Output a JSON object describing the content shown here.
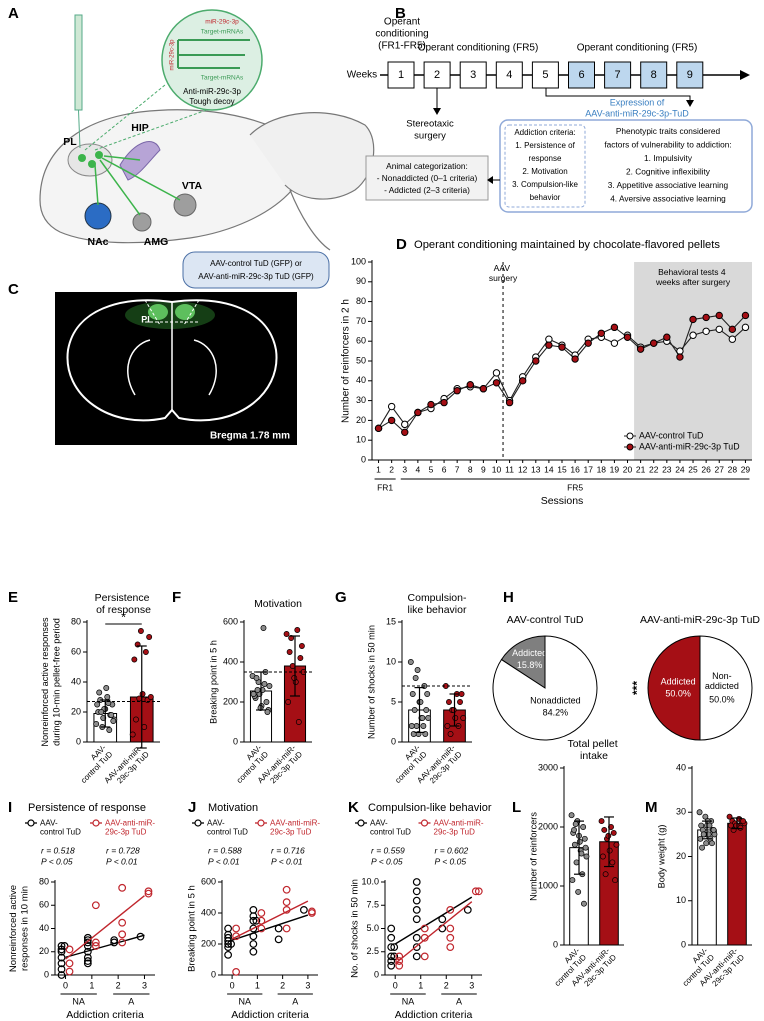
{
  "diagrams": {
    "panel_a": {
      "panel": "A",
      "inset_labels": [
        "miR-29c-3p",
        "Target-mRNAs",
        "miR-29c-3p",
        "Target-mRNAs"
      ],
      "inset_caption": [
        "Anti-miR-29c-3p",
        "Tough decoy"
      ],
      "regions": [
        "PL",
        "HIP",
        "VTA",
        "NAc",
        "AMG"
      ],
      "legend": [
        "AAV-control TuD (GFP) or",
        "AAV-anti-miR-29c-3p TuD (GFP)"
      ]
    },
    "panel_b": {
      "panel": "B",
      "weeks_label": "Weeks",
      "weeks": [
        1,
        2,
        3,
        4,
        5,
        6,
        7,
        8,
        9
      ],
      "phase1": [
        "Operant",
        "conditioning",
        "(FR1-FR5)"
      ],
      "phase2": "Operant conditioning (FR5)",
      "phase3": "Operant conditioning (FR5)",
      "surgery": [
        "Stereotaxic",
        "surgery"
      ],
      "expression": [
        "Expression of",
        "AAV-anti-miR-29c-3p-TuD"
      ],
      "criteria": [
        "Addiction criteria:",
        "1. Persistence of",
        "response",
        "2. Motivation",
        "3. Compulsion-like",
        "behavior"
      ],
      "traits": [
        "Phenotypic traits considered",
        "factors of vulnerability to addiction:",
        "1. Impulsivity",
        "2. Cognitive inflexibility",
        "3. Appetitive associative learning",
        "4. Aversive associative learning"
      ],
      "categorization": [
        "Animal categorization:",
        "- Nonaddicted (0–1 criteria)",
        "- Addicted (2–3 criteria)"
      ]
    },
    "panel_c": {
      "panel": "C",
      "region": "PL",
      "caption": "Bregma 1.78 mm"
    }
  },
  "chart_data": [
    {
      "type": "line",
      "panel": "D",
      "title": "Operant conditioning maintained by chocolate-flavored pellets",
      "ylabel": [
        "Number of reinforcers in 2 h"
      ],
      "xlabel": "Sessions",
      "categories": [
        1,
        2,
        3,
        4,
        5,
        6,
        7,
        8,
        9,
        10,
        11,
        12,
        13,
        14,
        15,
        16,
        17,
        18,
        19,
        20,
        21,
        22,
        23,
        24,
        25,
        26,
        27,
        28,
        29
      ],
      "group_labels": [
        "FR1",
        "FR5"
      ],
      "annotations": [
        "AAV surgery",
        "Behavioral tests 4 weeks after surgery"
      ],
      "ylim": [
        0,
        100
      ],
      "yticks": [
        0,
        10,
        20,
        30,
        40,
        50,
        60,
        70,
        80,
        90,
        100
      ],
      "legend": "lower right",
      "series": [
        {
          "name": "AAV-control TuD",
          "color": "#ffffff",
          "values": [
            16,
            27,
            18,
            24,
            26,
            31,
            36,
            37,
            36,
            44,
            30,
            42,
            52,
            61,
            58,
            53,
            61,
            62,
            59,
            63,
            57,
            59,
            60,
            55,
            63,
            65,
            66,
            61,
            67
          ]
        },
        {
          "name": "AAV-anti-miR-29c-3p TuD",
          "color": "#a50f15",
          "values": [
            16,
            20,
            14,
            24,
            28,
            29,
            35,
            38,
            36,
            39,
            29,
            40,
            50,
            58,
            57,
            51,
            59,
            64,
            67,
            62,
            56,
            59,
            62,
            52,
            71,
            72,
            73,
            66,
            73
          ]
        }
      ]
    },
    {
      "type": "bar",
      "panel": "E",
      "title": "Persistence of response",
      "ylabel": [
        "Nonreinforced active responses",
        "during 10-min pellet-free period"
      ],
      "categories": [
        "AAV-control TuD",
        "AAV-anti-miR-29c-3p TuD"
      ],
      "colors": [
        "#ffffff",
        "#a50f15"
      ],
      "values": [
        19,
        30
      ],
      "errors": [
        9,
        34
      ],
      "points": [
        [
          12,
          16,
          18,
          20,
          22,
          25,
          28,
          30,
          15,
          10,
          8,
          25,
          22,
          18,
          33,
          36,
          14,
          20,
          26
        ],
        [
          5,
          10,
          15,
          28,
          29,
          30,
          32,
          55,
          60,
          65,
          70,
          74
        ]
      ],
      "threshold": 27,
      "significance": "*",
      "ylim": [
        0,
        80
      ],
      "yticks": [
        0,
        20,
        40,
        60,
        80
      ]
    },
    {
      "type": "bar",
      "panel": "F",
      "title": "Motivation",
      "ylabel": [
        "Breaking point in 5 h"
      ],
      "categories": [
        "AAV-control TuD",
        "AAV-anti-miR-29c-3p TuD"
      ],
      "colors": [
        "#ffffff",
        "#a50f15"
      ],
      "values": [
        255,
        380
      ],
      "errors": [
        95,
        150
      ],
      "points": [
        [
          330,
          240,
          200,
          220,
          260,
          280,
          300,
          350,
          230,
          180,
          160,
          260,
          290,
          240,
          170,
          150,
          320,
          570
        ],
        [
          540,
          560,
          450,
          420,
          380,
          350,
          300,
          200,
          100,
          520,
          480,
          320
        ]
      ],
      "threshold": 350,
      "ylim": [
        0,
        600
      ],
      "yticks": [
        0,
        200,
        400,
        600
      ]
    },
    {
      "type": "bar",
      "panel": "G",
      "title": "Compulsion-like behavior",
      "ylabel": [
        "Number of shocks in 50 min"
      ],
      "categories": [
        "AAV-control TuD",
        "AAV-anti-miR-29c-3p TuD"
      ],
      "colors": [
        "#ffffff",
        "#a50f15"
      ],
      "values": [
        4,
        4
      ],
      "errors": [
        2.8,
        2
      ],
      "points": [
        [
          10,
          9,
          7,
          6,
          5,
          4,
          4,
          3,
          3,
          2,
          2,
          2,
          1,
          1,
          1,
          5,
          6,
          8,
          3
        ],
        [
          7,
          6,
          5,
          5,
          4,
          3,
          3,
          2,
          2,
          1,
          6,
          4
        ]
      ],
      "threshold": 7,
      "ylim": [
        0,
        15
      ],
      "yticks": [
        0,
        5,
        10,
        15
      ]
    },
    {
      "type": "pie",
      "panel": "H",
      "pies": [
        {
          "title": "AAV-control TuD",
          "labels": [
            "Addicted",
            "Nonaddicted"
          ],
          "values": [
            15.8,
            84.2
          ],
          "value_labels": [
            "15.8%",
            "84.2%"
          ],
          "colors": [
            "#7f7f7f",
            "#ffffff"
          ]
        },
        {
          "title": "AAV-anti-miR-29c-3p TuD",
          "labels": [
            "Addicted",
            "Non-addicted"
          ],
          "values": [
            50.0,
            50.0
          ],
          "value_labels": [
            "50.0%",
            "50.0%"
          ],
          "colors": [
            "#a50f15",
            "#ffffff"
          ],
          "significance": "***"
        }
      ]
    },
    {
      "type": "scatter",
      "panel": "I",
      "title": "Persistence of response",
      "ylabel": [
        "Nonreinforced active",
        "responses in 10 min"
      ],
      "xlabel": "Addiction criteria",
      "xlim": [
        -0.4,
        3.4
      ],
      "xticks": [
        0,
        1,
        2,
        3
      ],
      "group_labels": [
        "NA",
        "A"
      ],
      "ylim": [
        0,
        80
      ],
      "yticks": [
        0,
        20,
        40,
        60,
        80
      ],
      "series": [
        {
          "name": "AAV-control TuD",
          "color": "#000000",
          "x": [
            0,
            0,
            0,
            0,
            0,
            0,
            0,
            0,
            1,
            1,
            1,
            1,
            1,
            1,
            1,
            1,
            2,
            2,
            3
          ],
          "y": [
            0,
            5,
            10,
            15,
            20,
            25,
            25,
            22,
            10,
            12,
            15,
            20,
            25,
            28,
            30,
            32,
            28,
            30,
            33
          ],
          "stats": [
            "r = 0.518",
            "P < 0.05"
          ]
        },
        {
          "name": "AAV-anti-miR-29c-3p TuD",
          "color": "#c0262d",
          "x": [
            0,
            0,
            0,
            1,
            1,
            1,
            2,
            2,
            2,
            2,
            3,
            3
          ],
          "y": [
            3,
            10,
            22,
            25,
            28,
            60,
            28,
            35,
            45,
            75,
            70,
            72
          ],
          "stats": [
            "r = 0.728",
            "P < 0.01"
          ]
        }
      ]
    },
    {
      "type": "scatter",
      "panel": "J",
      "title": "Motivation",
      "ylabel": [
        "Breaking point in 5 h"
      ],
      "xlabel": "Addiction criteria",
      "xlim": [
        -0.4,
        3.4
      ],
      "xticks": [
        0,
        1,
        2,
        3
      ],
      "group_labels": [
        "NA",
        "A"
      ],
      "ylim": [
        0,
        600
      ],
      "yticks": [
        0,
        200,
        400,
        600
      ],
      "series": [
        {
          "name": "AAV-control TuD",
          "color": "#000000",
          "x": [
            0,
            0,
            0,
            0,
            0,
            0,
            0,
            0,
            1,
            1,
            1,
            1,
            1,
            1,
            1,
            1,
            2,
            2,
            3
          ],
          "y": [
            130,
            200,
            220,
            240,
            260,
            300,
            200,
            180,
            150,
            250,
            300,
            350,
            350,
            380,
            420,
            200,
            300,
            230,
            420
          ],
          "stats": [
            "r = 0.588",
            "P < 0.01"
          ]
        },
        {
          "name": "AAV-anti-miR-29c-3p TuD",
          "color": "#c0262d",
          "x": [
            0,
            0,
            0,
            1,
            1,
            1,
            2,
            2,
            2,
            2,
            3,
            3
          ],
          "y": [
            20,
            250,
            300,
            350,
            400,
            300,
            300,
            420,
            470,
            550,
            410,
            400
          ],
          "stats": [
            "r = 0.716",
            "P < 0.01"
          ]
        }
      ]
    },
    {
      "type": "scatter",
      "panel": "K",
      "title": "Compulsion-like behavior",
      "ylabel": [
        "No. of shocks in 50 min"
      ],
      "xlabel": "Addiction criteria",
      "xlim": [
        -0.4,
        3.4
      ],
      "xticks": [
        0,
        1,
        2,
        3
      ],
      "group_labels": [
        "NA",
        "A"
      ],
      "ylim": [
        0,
        10
      ],
      "yticks": [
        0,
        2.5,
        {
          "value": 5,
          "label": "5.0"
        },
        7.5,
        {
          "value": 10,
          "label": "10.0"
        }
      ],
      "series": [
        {
          "name": "AAV-control TuD",
          "color": "#000000",
          "x": [
            0,
            0,
            0,
            0,
            0,
            0,
            0,
            0,
            1,
            1,
            1,
            1,
            1,
            1,
            1,
            1,
            2,
            2,
            3
          ],
          "y": [
            1,
            2,
            3,
            4,
            5,
            3,
            2,
            1.5,
            2,
            3,
            4,
            6,
            7,
            8,
            9,
            10,
            5,
            6,
            7
          ],
          "stats": [
            "r = 0.559",
            "P < 0.05"
          ]
        },
        {
          "name": "AAV-anti-miR-29c-3p TuD",
          "color": "#c0262d",
          "x": [
            0,
            0,
            0,
            1,
            1,
            1,
            2,
            2,
            2,
            2,
            3,
            3
          ],
          "y": [
            1,
            2,
            1.5,
            2,
            4,
            5,
            3,
            4,
            5,
            7,
            9,
            9
          ],
          "stats": [
            "r = 0.602",
            "P < 0.05"
          ]
        }
      ]
    },
    {
      "type": "bar",
      "panel": "L",
      "title": "Total pellet intake",
      "ylabel": [
        "Number of reinforcers"
      ],
      "categories": [
        "AAV-control TuD",
        "AAV-anti-miR-29c-3p TuD"
      ],
      "colors": [
        "#ffffff",
        "#a50f15"
      ],
      "values": [
        1650,
        1750
      ],
      "errors": [
        450,
        420
      ],
      "points": [
        [
          2200,
          2100,
          2000,
          1900,
          1850,
          1800,
          1700,
          1600,
          1500,
          1400,
          1200,
          1100,
          900,
          700,
          1950,
          1750,
          1650,
          2050,
          1550
        ],
        [
          2100,
          2000,
          1950,
          1900,
          1800,
          1700,
          1600,
          1500,
          1400,
          1200,
          1100,
          1850
        ]
      ],
      "ylim": [
        0,
        3000
      ],
      "yticks": [
        0,
        1000,
        2000,
        3000
      ]
    },
    {
      "type": "bar",
      "panel": "M",
      "ylabel": [
        "Body weight (g)"
      ],
      "categories": [
        "AAV-control TuD",
        "AAV-anti-miR-29c-3p TuD"
      ],
      "colors": [
        "#ffffff",
        "#a50f15"
      ],
      "values": [
        26,
        27.5
      ],
      "errors": [
        2,
        1.2
      ],
      "points": [
        [
          30,
          29,
          28,
          27,
          27,
          26,
          26,
          25,
          25,
          25,
          24,
          24,
          23,
          23,
          22,
          28,
          26,
          25,
          27
        ],
        [
          29,
          28.5,
          28,
          28,
          27.5,
          27.5,
          27,
          27,
          26.5,
          26,
          28,
          27
        ]
      ],
      "ylim": [
        0,
        40
      ],
      "yticks": [
        0,
        10,
        20,
        30,
        40
      ]
    }
  ]
}
